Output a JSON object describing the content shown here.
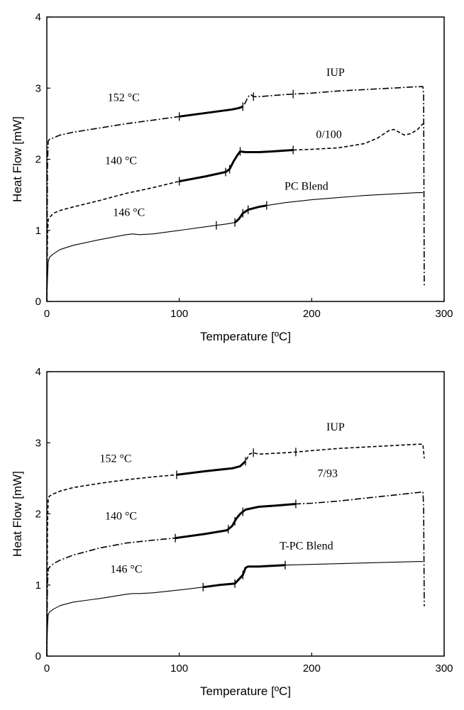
{
  "chart_data": [
    {
      "type": "line",
      "xlabel": "Temperature [ºC]",
      "ylabel": "Heat Flow [mW]",
      "xlim": [
        0,
        300
      ],
      "ylim": [
        0,
        4
      ],
      "xticks": [
        "0",
        "100",
        "200",
        "300"
      ],
      "yticks": [
        "0",
        "1",
        "2",
        "3",
        "4"
      ],
      "grid": false,
      "series": [
        {
          "name": "IUP",
          "style": "dash-dot",
          "x": [
            0,
            0.5,
            1,
            2,
            5,
            10,
            20,
            40,
            60,
            80,
            100,
            120,
            140,
            145,
            148,
            150,
            152,
            154,
            156,
            160,
            180,
            200,
            220,
            240,
            260,
            280,
            284,
            284.5,
            285
          ],
          "y": [
            0.0,
            1.9,
            2.25,
            2.28,
            2.3,
            2.34,
            2.38,
            2.44,
            2.5,
            2.55,
            2.6,
            2.65,
            2.7,
            2.72,
            2.74,
            2.8,
            2.88,
            2.91,
            2.88,
            2.88,
            2.91,
            2.93,
            2.96,
            2.98,
            3.0,
            3.02,
            3.02,
            2.9,
            0.2
          ],
          "highlight_x": [
            100,
            148
          ],
          "ticks_x": [
            100,
            148,
            156,
            186
          ]
        },
        {
          "name": "0/100",
          "style": "dashed",
          "x": [
            0,
            0.5,
            1,
            2,
            5,
            10,
            20,
            40,
            60,
            80,
            100,
            120,
            135,
            138,
            141,
            144,
            146,
            150,
            160,
            170,
            186,
            200,
            220,
            240,
            250,
            258,
            262,
            266,
            270,
            275,
            280,
            284
          ],
          "y": [
            0.0,
            0.9,
            1.15,
            1.18,
            1.24,
            1.28,
            1.33,
            1.42,
            1.52,
            1.6,
            1.69,
            1.76,
            1.82,
            1.86,
            1.97,
            2.06,
            2.11,
            2.1,
            2.1,
            2.11,
            2.13,
            2.14,
            2.16,
            2.22,
            2.3,
            2.4,
            2.42,
            2.38,
            2.34,
            2.36,
            2.42,
            2.5
          ],
          "highlight_x": [
            100,
            186
          ],
          "ticks_x": [
            100,
            135,
            138,
            146,
            186
          ]
        },
        {
          "name": "PC Blend",
          "style": "solid",
          "x": [
            0,
            0.5,
            1,
            2,
            5,
            10,
            20,
            40,
            60,
            65,
            70,
            80,
            100,
            120,
            128,
            136,
            142,
            145,
            148,
            152,
            156,
            160,
            166,
            180,
            200,
            220,
            240,
            260,
            280,
            284
          ],
          "y": [
            0.0,
            0.3,
            0.55,
            0.62,
            0.67,
            0.73,
            0.79,
            0.87,
            0.94,
            0.95,
            0.94,
            0.95,
            1.0,
            1.05,
            1.07,
            1.09,
            1.11,
            1.16,
            1.24,
            1.29,
            1.31,
            1.33,
            1.35,
            1.39,
            1.43,
            1.46,
            1.49,
            1.51,
            1.53,
            1.53
          ],
          "highlight_x": [
            142,
            166
          ],
          "ticks_x": [
            128,
            142,
            148,
            152,
            166
          ]
        }
      ],
      "annotations": [
        {
          "text": "IUP",
          "x": 218,
          "y": 3.17
        },
        {
          "text": "152 °C",
          "x": 58,
          "y": 2.82
        },
        {
          "text": "0/100",
          "x": 213,
          "y": 2.3
        },
        {
          "text": "140 °C",
          "x": 56,
          "y": 1.93
        },
        {
          "text": "PC Blend",
          "x": 196,
          "y": 1.57
        },
        {
          "text": "146 °C",
          "x": 62,
          "y": 1.2
        }
      ]
    },
    {
      "type": "line",
      "xlabel": "Temperature [ºC]",
      "ylabel": "Heat Flow [mW]",
      "xlim": [
        0,
        300
      ],
      "ylim": [
        0,
        4
      ],
      "xticks": [
        "0",
        "100",
        "200",
        "300"
      ],
      "yticks": [
        "0",
        "1",
        "2",
        "3",
        "4"
      ],
      "grid": false,
      "series": [
        {
          "name": "IUP",
          "style": "dashed",
          "x": [
            0,
            0.5,
            1,
            2,
            5,
            10,
            20,
            40,
            60,
            80,
            98,
            120,
            140,
            146,
            150,
            153,
            156,
            160,
            180,
            188,
            200,
            220,
            240,
            260,
            280,
            284,
            285
          ],
          "y": [
            0.0,
            1.8,
            2.22,
            2.25,
            2.28,
            2.32,
            2.37,
            2.43,
            2.48,
            2.52,
            2.55,
            2.6,
            2.64,
            2.67,
            2.74,
            2.84,
            2.86,
            2.84,
            2.86,
            2.87,
            2.89,
            2.92,
            2.94,
            2.96,
            2.98,
            2.98,
            2.78
          ],
          "highlight_x": [
            98,
            150
          ],
          "ticks_x": [
            98,
            150,
            156,
            188
          ]
        },
        {
          "name": "7/93",
          "style": "dash-dot",
          "x": [
            0,
            0.5,
            1,
            2,
            5,
            10,
            20,
            40,
            60,
            80,
            97,
            120,
            136,
            140,
            143,
            146,
            150,
            155,
            160,
            175,
            188,
            200,
            220,
            240,
            260,
            280,
            284,
            284.5,
            285
          ],
          "y": [
            0.0,
            1.0,
            1.22,
            1.25,
            1.3,
            1.35,
            1.42,
            1.52,
            1.59,
            1.63,
            1.66,
            1.72,
            1.77,
            1.83,
            1.93,
            2.0,
            2.06,
            2.08,
            2.1,
            2.12,
            2.14,
            2.15,
            2.18,
            2.22,
            2.26,
            2.3,
            2.31,
            2.1,
            0.7
          ],
          "highlight_x": [
            97,
            188
          ],
          "ticks_x": [
            97,
            137,
            142,
            148,
            188
          ]
        },
        {
          "name": "T-PC Blend",
          "style": "solid",
          "x": [
            0,
            0.5,
            1,
            2,
            5,
            10,
            20,
            40,
            60,
            65,
            70,
            80,
            100,
            118,
            130,
            142,
            145,
            148,
            150,
            152,
            160,
            180,
            200,
            220,
            240,
            260,
            280,
            284
          ],
          "y": [
            0.0,
            0.4,
            0.58,
            0.62,
            0.66,
            0.71,
            0.76,
            0.81,
            0.87,
            0.88,
            0.88,
            0.89,
            0.93,
            0.97,
            1.0,
            1.02,
            1.08,
            1.14,
            1.24,
            1.26,
            1.26,
            1.28,
            1.29,
            1.3,
            1.31,
            1.32,
            1.33,
            1.33
          ],
          "highlight_x": [
            118,
            180
          ],
          "ticks_x": [
            118,
            142,
            148,
            180
          ]
        }
      ],
      "annotations": [
        {
          "text": "IUP",
          "x": 218,
          "y": 3.17
        },
        {
          "text": "152 °C",
          "x": 52,
          "y": 2.73
        },
        {
          "text": "7/93",
          "x": 212,
          "y": 2.52
        },
        {
          "text": "140 °C",
          "x": 56,
          "y": 1.92
        },
        {
          "text": "T-PC Blend",
          "x": 196,
          "y": 1.5
        },
        {
          "text": "146 °C",
          "x": 60,
          "y": 1.17
        }
      ]
    }
  ]
}
